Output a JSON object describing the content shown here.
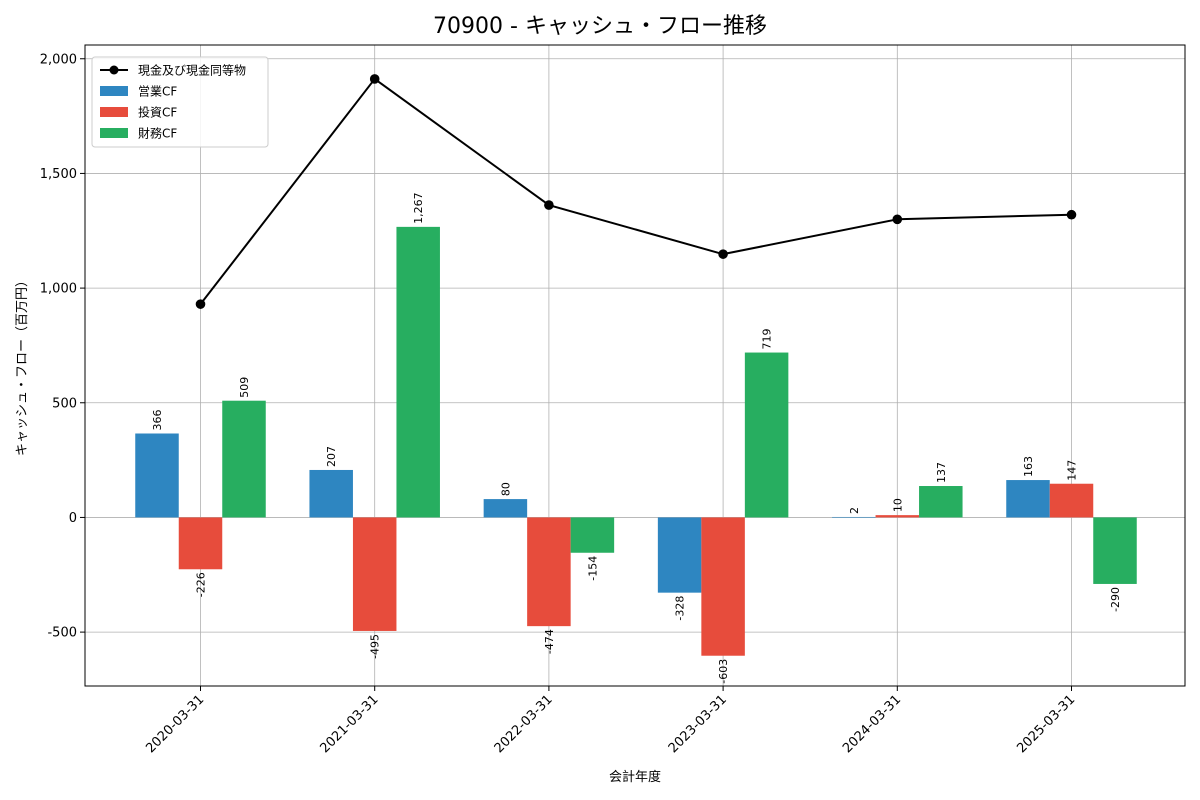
{
  "chart_data": {
    "type": "bar",
    "title": "70900 - キャッシュ・フロー推移",
    "xlabel": "会計年度",
    "ylabel": "キャッシュ・フロー（百万円）",
    "ylim": [
      -735,
      2060
    ],
    "yticks": [
      -500,
      0,
      500,
      1000,
      1500,
      2000
    ],
    "ytick_labels": [
      "-500",
      "0",
      "500",
      "1,000",
      "1,500",
      "2,000"
    ],
    "grid": true,
    "legend_position": "top-left",
    "categories": [
      "2020-03-31",
      "2021-03-31",
      "2022-03-31",
      "2023-03-31",
      "2024-03-31",
      "2025-03-31"
    ],
    "series": [
      {
        "name": "営業CF",
        "type": "bar",
        "color": "#2e86c1",
        "values": [
          366,
          207,
          80,
          -328,
          2,
          163
        ],
        "labels": [
          "366",
          "207",
          "80",
          "-328",
          "2",
          "163"
        ]
      },
      {
        "name": "投資CF",
        "type": "bar",
        "color": "#e74c3c",
        "values": [
          -226,
          -495,
          -474,
          -603,
          10,
          147
        ],
        "labels": [
          "-226",
          "-495",
          "-474",
          "-603",
          "10",
          "147"
        ]
      },
      {
        "name": "財務CF",
        "type": "bar",
        "color": "#27ae60",
        "values": [
          509,
          1267,
          -154,
          719,
          137,
          -290
        ],
        "labels": [
          "509",
          "1,267",
          "-154",
          "719",
          "137",
          "-290"
        ]
      },
      {
        "name": "現金及び現金同等物",
        "type": "line",
        "color": "#000000",
        "values": [
          930,
          1912,
          1362,
          1148,
          1300,
          1320
        ]
      }
    ],
    "legend": [
      {
        "name": "現金及び現金同等物",
        "kind": "line",
        "color": "#000000"
      },
      {
        "name": "営業CF",
        "kind": "bar",
        "color": "#2e86c1"
      },
      {
        "name": "投資CF",
        "kind": "bar",
        "color": "#e74c3c"
      },
      {
        "name": "財務CF",
        "kind": "bar",
        "color": "#27ae60"
      }
    ]
  }
}
